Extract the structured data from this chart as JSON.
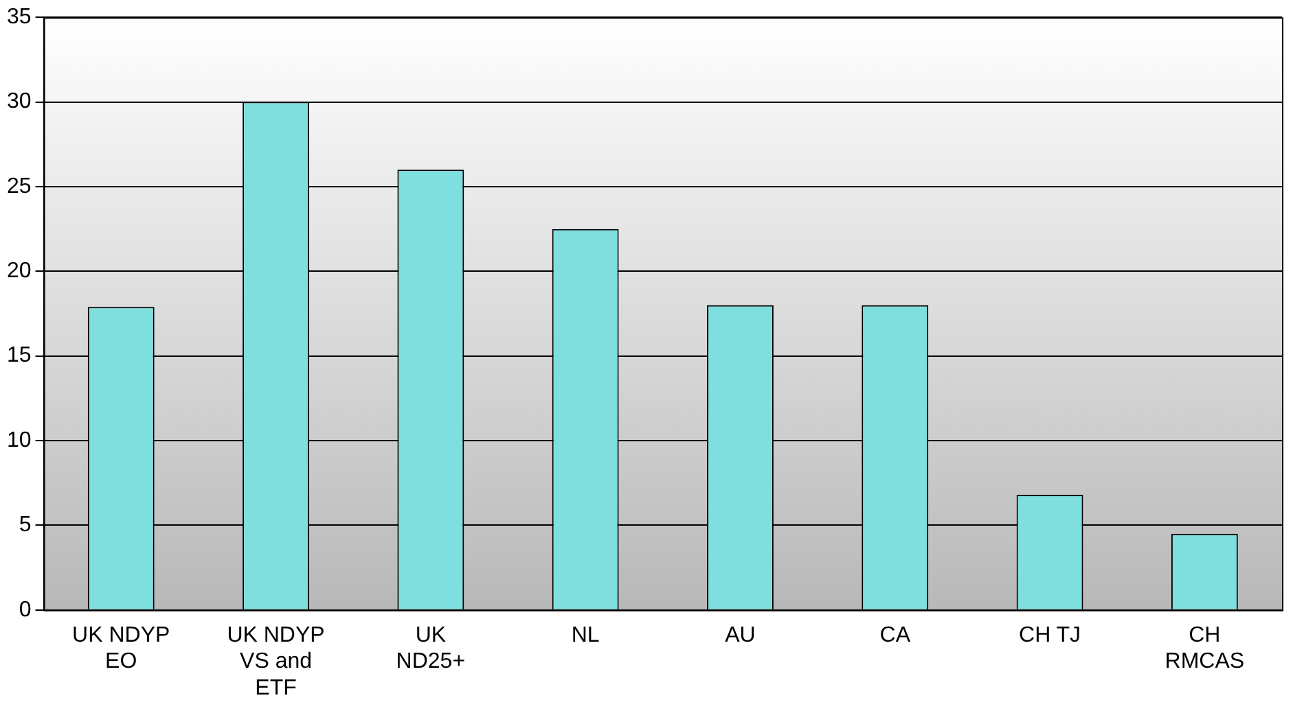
{
  "chart_data": {
    "type": "bar",
    "categories": [
      "UK NDYP EO",
      "UK NDYP VS and ETF",
      "UK ND25+",
      "NL",
      "AU",
      "CA",
      "CH TJ",
      "CH RMCAS"
    ],
    "values": [
      17.9,
      30,
      26,
      22.5,
      18,
      18,
      6.8,
      4.5
    ],
    "color": "#7fdede",
    "ylim": [
      0,
      35
    ],
    "yticks": [
      0,
      5,
      10,
      15,
      20,
      25,
      30,
      35
    ],
    "grid": "y",
    "legend": false
  }
}
